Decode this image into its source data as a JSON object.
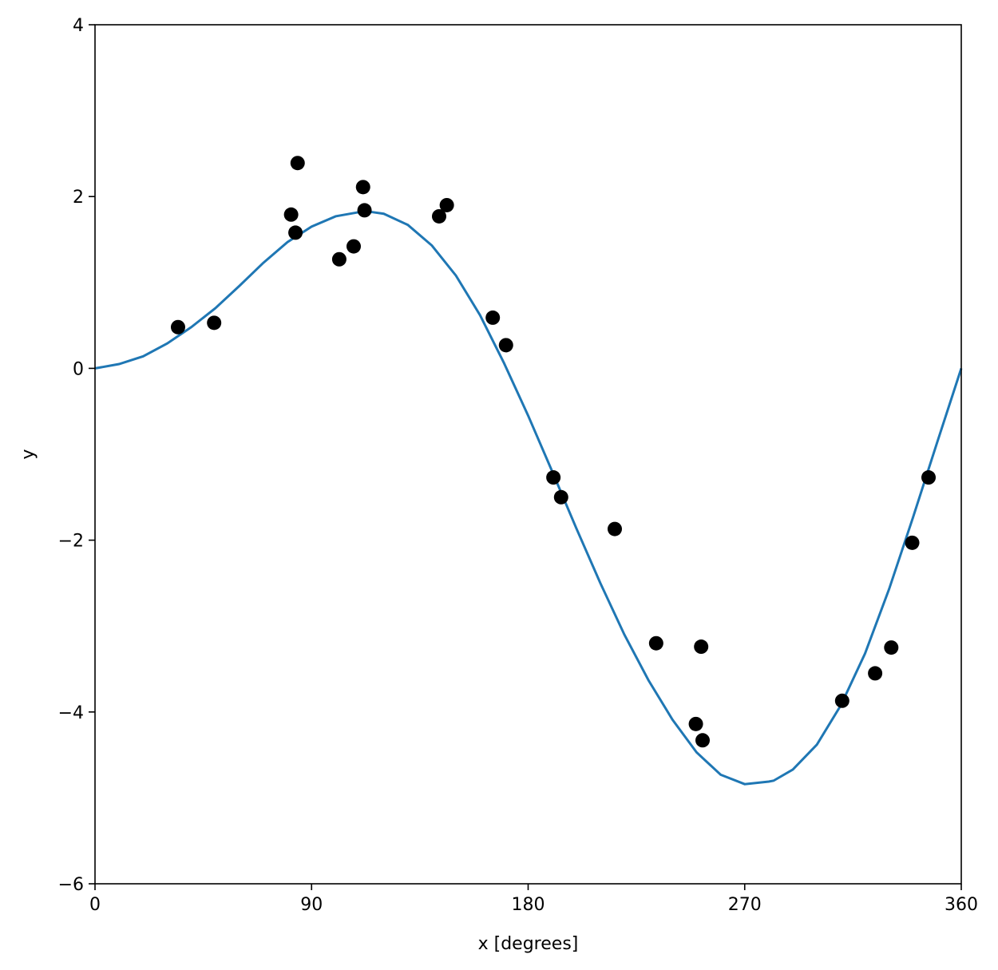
{
  "chart_data": {
    "type": "scatter",
    "title": "",
    "xlabel": "x [degrees]",
    "ylabel": "y",
    "xlim": [
      0,
      360
    ],
    "ylim": [
      -6,
      4
    ],
    "x_ticks": [
      0,
      90,
      180,
      270,
      360
    ],
    "x_tick_labels": [
      "0",
      "90",
      "180",
      "270",
      "360"
    ],
    "y_ticks": [
      -6,
      -4,
      -2,
      0,
      2,
      4
    ],
    "y_tick_labels": [
      "−6",
      "−4",
      "−2",
      "0",
      "2",
      "4"
    ],
    "grid": false,
    "series": [
      {
        "kind": "scatter",
        "color": "#000000",
        "points": [
          {
            "x": 34.5,
            "y": 0.48
          },
          {
            "x": 49.5,
            "y": 0.53
          },
          {
            "x": 81.5,
            "y": 1.79
          },
          {
            "x": 83.3,
            "y": 1.58
          },
          {
            "x": 84.2,
            "y": 2.39
          },
          {
            "x": 101.5,
            "y": 1.27
          },
          {
            "x": 107.5,
            "y": 1.42
          },
          {
            "x": 111.4,
            "y": 2.11
          },
          {
            "x": 112.0,
            "y": 1.84
          },
          {
            "x": 143.0,
            "y": 1.77
          },
          {
            "x": 146.2,
            "y": 1.9
          },
          {
            "x": 165.3,
            "y": 0.59
          },
          {
            "x": 170.8,
            "y": 0.27
          },
          {
            "x": 190.5,
            "y": -1.27
          },
          {
            "x": 193.7,
            "y": -1.5
          },
          {
            "x": 216.0,
            "y": -1.87
          },
          {
            "x": 233.2,
            "y": -3.2
          },
          {
            "x": 249.7,
            "y": -4.14
          },
          {
            "x": 251.9,
            "y": -3.24
          },
          {
            "x": 252.5,
            "y": -4.33
          },
          {
            "x": 310.5,
            "y": -3.87
          },
          {
            "x": 324.2,
            "y": -3.55
          },
          {
            "x": 330.9,
            "y": -3.25
          },
          {
            "x": 339.6,
            "y": -2.03
          },
          {
            "x": 346.4,
            "y": -1.27
          }
        ]
      },
      {
        "kind": "line",
        "color": "#1f77b4",
        "x": [
          0,
          10,
          20,
          30,
          40,
          50,
          60,
          70,
          80,
          90,
          100,
          110,
          115,
          120,
          130,
          140,
          150,
          160,
          170,
          180,
          190,
          200,
          210,
          220,
          230,
          240,
          250,
          260,
          270,
          280,
          282,
          290,
          300,
          310,
          320,
          330,
          340,
          350,
          360
        ],
        "y": [
          0.0,
          0.05,
          0.14,
          0.29,
          0.48,
          0.7,
          0.96,
          1.23,
          1.47,
          1.65,
          1.77,
          1.82,
          1.82,
          1.8,
          1.67,
          1.43,
          1.08,
          0.62,
          0.06,
          -0.55,
          -1.2,
          -1.86,
          -2.5,
          -3.1,
          -3.63,
          -4.09,
          -4.47,
          -4.73,
          -4.84,
          -4.81,
          -4.8,
          -4.67,
          -4.38,
          -3.92,
          -3.32,
          -2.57,
          -1.73,
          -0.86,
          0.0
        ]
      }
    ]
  }
}
